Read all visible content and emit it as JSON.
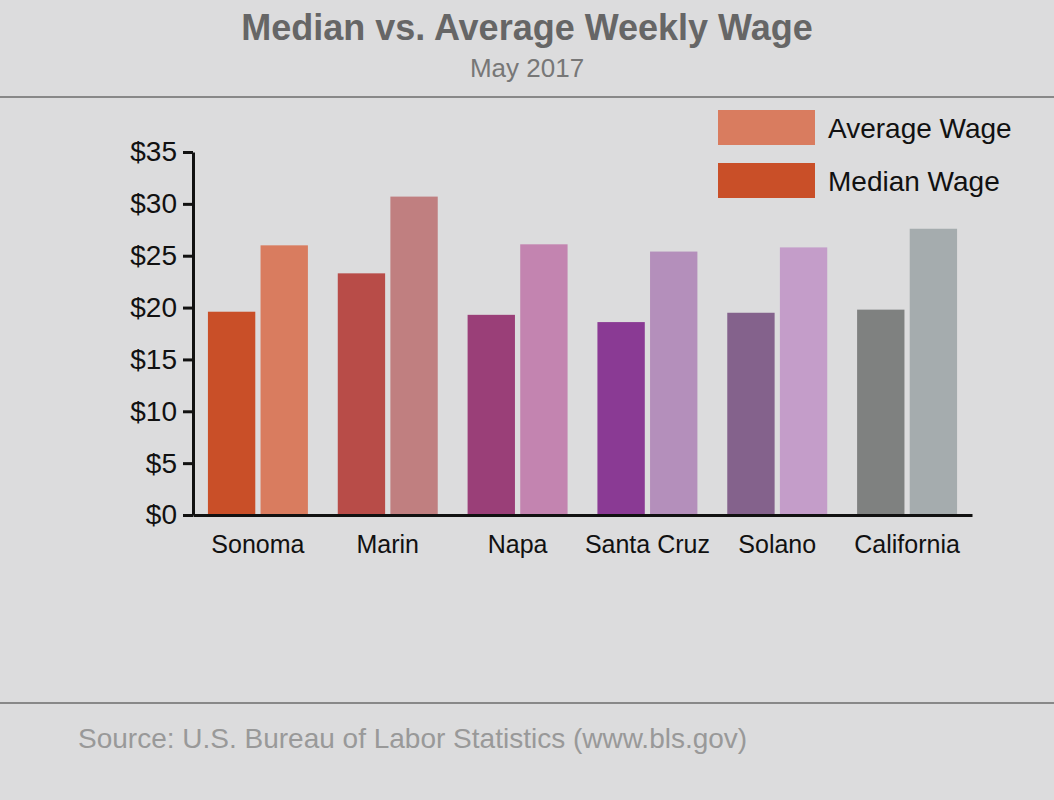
{
  "chart_data": {
    "type": "bar",
    "title": "Median vs. Average Weekly Wage",
    "subtitle": "May 2017",
    "source": "Source: U.S. Bureau of Labor Statistics (www.bls.gov)",
    "categories": [
      "Sonoma",
      "Marin",
      "Napa",
      "Santa Cruz",
      "Solano",
      "California"
    ],
    "series": [
      {
        "name": "Median Wage",
        "color": "#c94f28",
        "colors": [
          "#c94f28",
          "#b84c48",
          "#9a3f78",
          "#8a3a94",
          "#84628c",
          "#7f8180"
        ],
        "values": [
          19.6,
          23.3,
          19.3,
          18.6,
          19.5,
          19.8
        ]
      },
      {
        "name": "Average Wage",
        "color": "#d97c5f",
        "colors": [
          "#d97c5f",
          "#c07f80",
          "#c384b0",
          "#b48fbb",
          "#c49dc9",
          "#a5acae"
        ],
        "values": [
          26.0,
          30.7,
          26.1,
          25.4,
          25.8,
          27.6
        ]
      }
    ],
    "ylim": [
      0,
      35
    ],
    "yticks": [
      {
        "value": 0,
        "label": "$0"
      },
      {
        "value": 5,
        "label": "$5"
      },
      {
        "value": 10,
        "label": "$10"
      },
      {
        "value": 15,
        "label": "$15"
      },
      {
        "value": 20,
        "label": "$20"
      },
      {
        "value": 25,
        "label": "$25"
      },
      {
        "value": 30,
        "label": "$30"
      },
      {
        "value": 35,
        "label": "$35"
      }
    ],
    "grid": false,
    "legend": "upper right"
  }
}
